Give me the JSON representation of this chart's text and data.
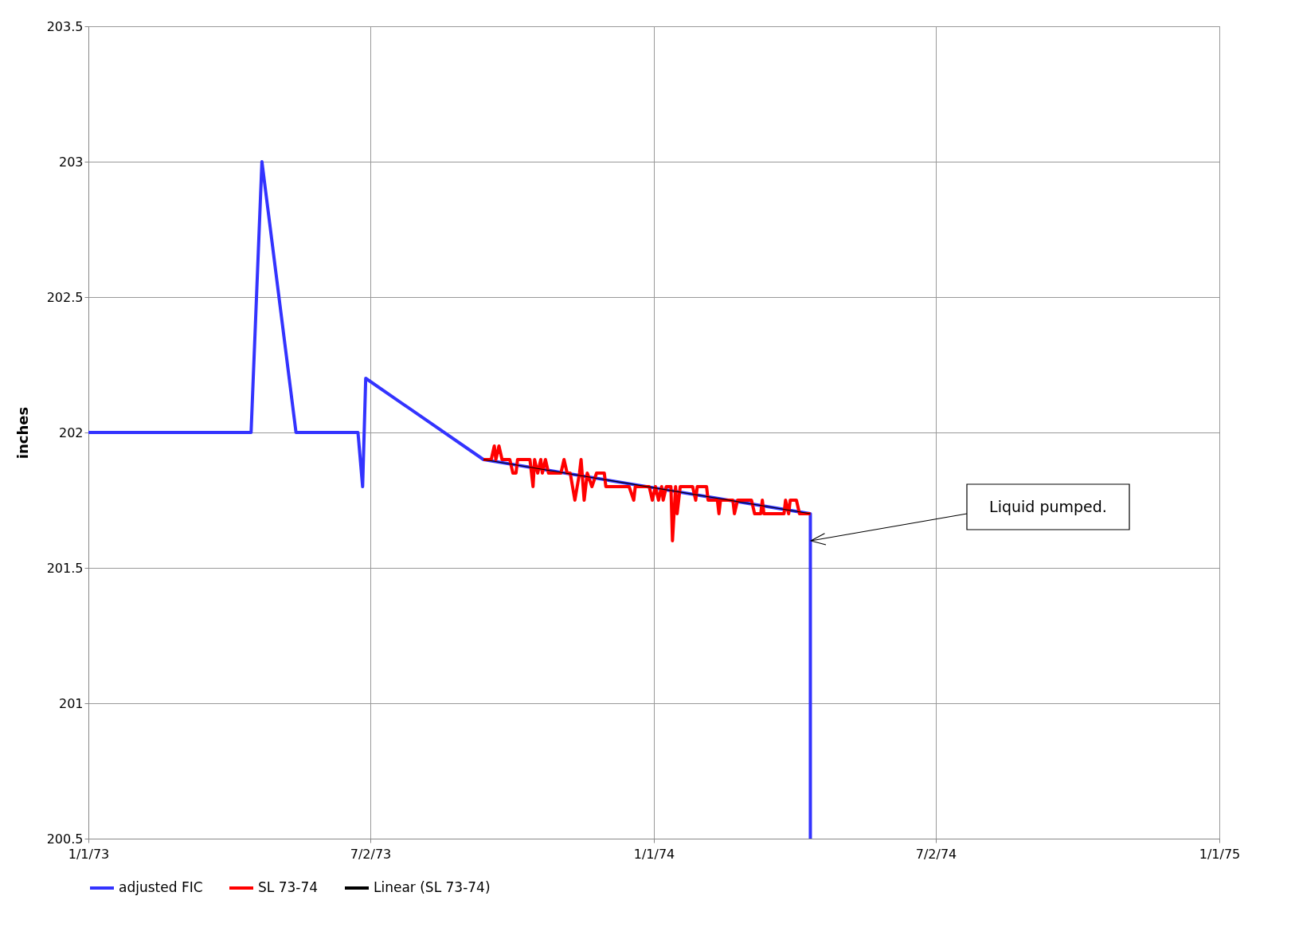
{
  "chart_data": {
    "type": "line",
    "ylabel": "inches",
    "xlim": [
      "1973-01-01",
      "1975-01-01"
    ],
    "xticks": [
      {
        "value": "1973-01-01",
        "label": "1/1/73"
      },
      {
        "value": "1973-07-02",
        "label": "7/2/73"
      },
      {
        "value": "1974-01-01",
        "label": "1/1/74"
      },
      {
        "value": "1974-07-02",
        "label": "7/2/74"
      },
      {
        "value": "1975-01-01",
        "label": "1/1/75"
      }
    ],
    "ylim": [
      200.5,
      203.5
    ],
    "yticks": [
      200.5,
      201,
      201.5,
      202,
      202.5,
      203,
      203.5
    ],
    "grid": true,
    "legend": "bottom",
    "line_style": "solid",
    "marker": "none",
    "series": [
      {
        "name": "adjusted FIC",
        "color": "#3333ff",
        "x": [
          "1973-01-01",
          "1973-04-16",
          "1973-04-23",
          "1973-05-15",
          "1973-06-24",
          "1973-06-27",
          "1973-06-29",
          "1973-09-13",
          "1974-04-12",
          "1974-04-12"
        ],
        "values": [
          202,
          202,
          203,
          202,
          202,
          201.8,
          202.2,
          201.9,
          201.7,
          200.5
        ]
      },
      {
        "name": "SL 73-74",
        "color": "#ff0000",
        "x": [
          "1973-09-13",
          "1973-09-18",
          "1973-09-20",
          "1973-09-21",
          "1973-09-23",
          "1973-09-25",
          "1973-09-30",
          "1973-10-02",
          "1973-10-04",
          "1973-10-05",
          "1973-10-13",
          "1973-10-15",
          "1973-10-16",
          "1973-10-18",
          "1973-10-20",
          "1973-10-21",
          "1973-10-23",
          "1973-10-25",
          "1973-11-02",
          "1973-11-04",
          "1973-11-06",
          "1973-11-08",
          "1973-11-11",
          "1973-11-14",
          "1973-11-15",
          "1973-11-17",
          "1973-11-19",
          "1973-11-22",
          "1973-11-25",
          "1973-11-30",
          "1973-12-01",
          "1973-12-16",
          "1973-12-19",
          "1973-12-20",
          "1973-12-29",
          "1973-12-31",
          "1974-01-02",
          "1974-01-04",
          "1974-01-06",
          "1974-01-07",
          "1974-01-09",
          "1974-01-12",
          "1974-01-13",
          "1974-01-15",
          "1974-01-16",
          "1974-01-18",
          "1974-01-26",
          "1974-01-28",
          "1974-01-29",
          "1974-02-04",
          "1974-02-05",
          "1974-02-11",
          "1974-02-12",
          "1974-02-13",
          "1974-02-21",
          "1974-02-22",
          "1974-02-24",
          "1974-03-05",
          "1974-03-07",
          "1974-03-11",
          "1974-03-12",
          "1974-03-13",
          "1974-03-26",
          "1974-03-27",
          "1974-03-29",
          "1974-03-30",
          "1974-04-03",
          "1974-04-05",
          "1974-04-12"
        ],
        "values": [
          201.9,
          201.9,
          201.95,
          201.9,
          201.95,
          201.9,
          201.9,
          201.85,
          201.85,
          201.9,
          201.9,
          201.8,
          201.9,
          201.85,
          201.9,
          201.85,
          201.9,
          201.85,
          201.85,
          201.9,
          201.85,
          201.85,
          201.75,
          201.85,
          201.9,
          201.75,
          201.85,
          201.8,
          201.85,
          201.85,
          201.8,
          201.8,
          201.75,
          201.8,
          201.8,
          201.75,
          201.8,
          201.75,
          201.8,
          201.75,
          201.8,
          201.8,
          201.6,
          201.8,
          201.7,
          201.8,
          201.8,
          201.75,
          201.8,
          201.8,
          201.75,
          201.75,
          201.7,
          201.75,
          201.75,
          201.7,
          201.75,
          201.75,
          201.7,
          201.7,
          201.75,
          201.7,
          201.7,
          201.75,
          201.7,
          201.75,
          201.75,
          201.7,
          201.7
        ]
      },
      {
        "name": "Linear (SL 73-74)",
        "color": "#000000",
        "x": [
          "1973-09-13",
          "1974-04-12"
        ],
        "values": [
          201.9,
          201.7
        ]
      }
    ],
    "annotations": [
      "Liquid pumped."
    ]
  }
}
